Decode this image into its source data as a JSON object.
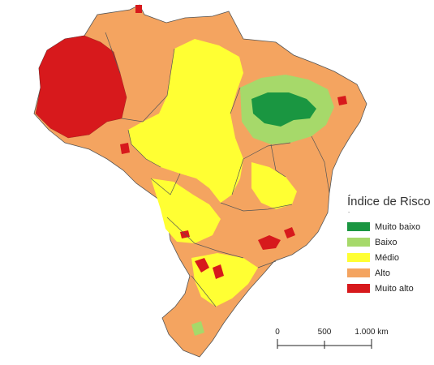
{
  "legend": {
    "title": "Índice de Risco",
    "subtitle": "-",
    "items": [
      {
        "label": "Muito baixo",
        "color": "#1a9641"
      },
      {
        "label": "Baixo",
        "color": "#a6d96a"
      },
      {
        "label": "Médio",
        "color": "#ffff33"
      },
      {
        "label": "Alto",
        "color": "#f4a460"
      },
      {
        "label": "Muito alto",
        "color": "#d7191c"
      }
    ]
  },
  "scale": {
    "ticks": [
      "0",
      "500",
      "1.000 km"
    ]
  },
  "colors": {
    "border": "#555555",
    "background": "#ffffff"
  }
}
